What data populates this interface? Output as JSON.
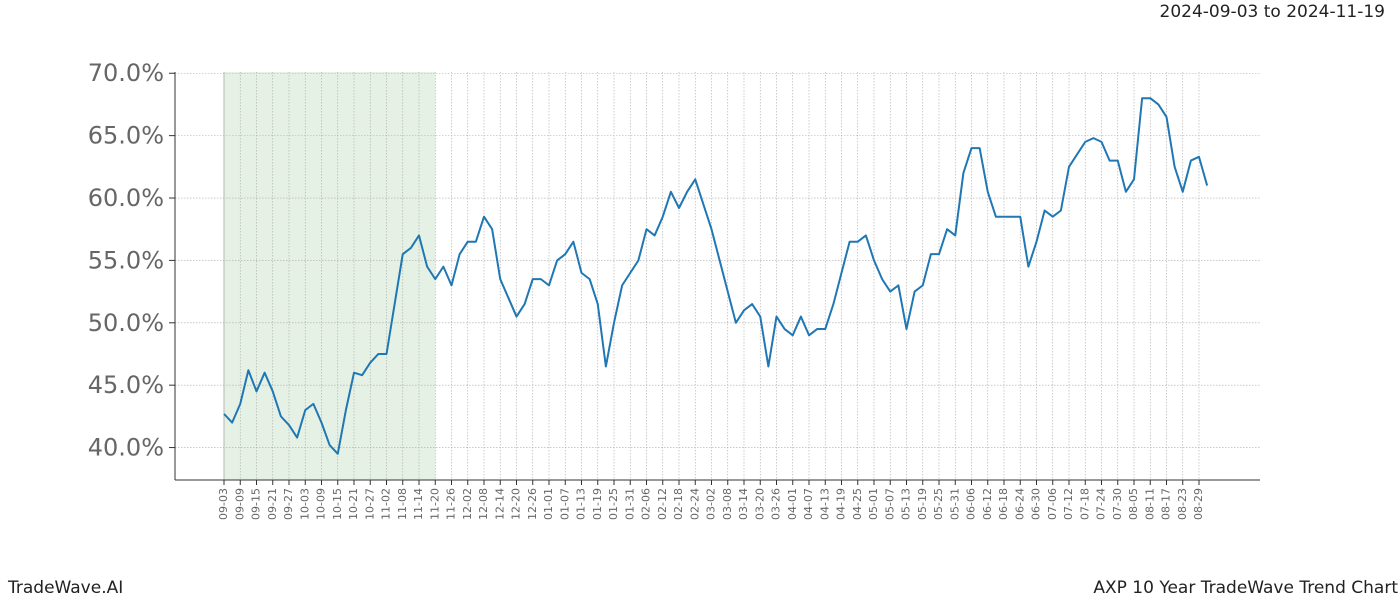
{
  "chart_data": {
    "type": "line",
    "subtitle": "2024-09-03 to 2024-11-19",
    "footer_left": "TradeWave.AI",
    "footer_right": "AXP 10 Year TradeWave Trend Chart",
    "categories": [
      "09-03",
      null,
      "09-09",
      null,
      "09-15",
      null,
      "09-21",
      null,
      "09-27",
      null,
      "10-03",
      null,
      "10-09",
      null,
      "10-15",
      null,
      "10-21",
      null,
      "10-27",
      null,
      "11-02",
      null,
      "11-08",
      null,
      "11-14",
      null,
      "11-20",
      null,
      "11-26",
      null,
      "12-02",
      null,
      "12-08",
      null,
      "12-14",
      null,
      "12-20",
      null,
      "12-26",
      null,
      "01-01",
      null,
      "01-07",
      null,
      "01-13",
      null,
      "01-19",
      null,
      "01-25",
      null,
      "01-31",
      null,
      "02-06",
      null,
      "02-12",
      null,
      "02-18",
      null,
      "02-24",
      null,
      "03-02",
      null,
      "03-08",
      null,
      "03-14",
      null,
      "03-20",
      null,
      "03-26",
      null,
      "04-01",
      null,
      "04-07",
      null,
      "04-13",
      null,
      "04-19",
      null,
      "04-25",
      null,
      "05-01",
      null,
      "05-07",
      null,
      "05-13",
      null,
      "05-19",
      null,
      "05-25",
      null,
      "05-31",
      null,
      "06-06",
      null,
      "06-12",
      null,
      "06-18",
      null,
      "06-24",
      null,
      "06-30",
      null,
      "07-06",
      null,
      "07-12",
      null,
      "07-18",
      null,
      "07-24",
      null,
      "07-30",
      null,
      "08-05",
      null,
      "08-11",
      null,
      "08-17",
      null,
      "08-23",
      null,
      "08-29",
      null
    ],
    "values": [
      42.7,
      42.0,
      43.5,
      46.2,
      44.5,
      46.0,
      44.5,
      42.5,
      41.8,
      40.8,
      43.0,
      43.5,
      42.0,
      40.2,
      39.5,
      43.0,
      46.0,
      45.8,
      46.8,
      47.5,
      47.5,
      51.5,
      55.5,
      56.0,
      57.0,
      54.5,
      53.5,
      54.5,
      53.0,
      55.5,
      56.5,
      56.5,
      58.5,
      57.5,
      53.5,
      52.0,
      50.5,
      51.5,
      53.5,
      53.5,
      53.0,
      55.0,
      55.5,
      56.5,
      54.0,
      53.5,
      51.5,
      46.5,
      50.0,
      53.0,
      54.0,
      55.0,
      57.5,
      57.0,
      58.5,
      60.5,
      59.2,
      60.5,
      61.5,
      59.5,
      57.5,
      55.0,
      52.5,
      50.0,
      51.0,
      51.5,
      50.5,
      46.5,
      50.5,
      49.5,
      49.0,
      50.5,
      49.0,
      49.5,
      49.5,
      51.5,
      54.0,
      56.5,
      56.5,
      57.0,
      55.0,
      53.5,
      52.5,
      53.0,
      49.5,
      52.5,
      53.0,
      55.5,
      55.5,
      57.5,
      57.0,
      62.0,
      64.0,
      64.0,
      60.5,
      58.5,
      58.5,
      58.5,
      58.5,
      54.5,
      56.5,
      59.0,
      58.5,
      59.0,
      62.5,
      63.5,
      64.5,
      64.8,
      64.5,
      63.0,
      63.0,
      60.5,
      61.5,
      68.0,
      68.0,
      67.5,
      66.5,
      62.5,
      60.5,
      63.0,
      63.3,
      61.0
    ],
    "color": "#1f77b4",
    "highlight_start": "09-03",
    "highlight_end": "11-20",
    "highlight_color": "#e5f1e5",
    "ylim": [
      37.4,
      70.1
    ],
    "yticks": [
      {
        "value": 40,
        "label": "40.0%"
      },
      {
        "value": 45,
        "label": "45.0%"
      },
      {
        "value": 50,
        "label": "50.0%"
      },
      {
        "value": 55,
        "label": "55.0%"
      },
      {
        "value": 60,
        "label": "60.0%"
      },
      {
        "value": 65,
        "label": "65.0%"
      },
      {
        "value": 70,
        "label": "70.0%"
      }
    ],
    "grid": true
  }
}
